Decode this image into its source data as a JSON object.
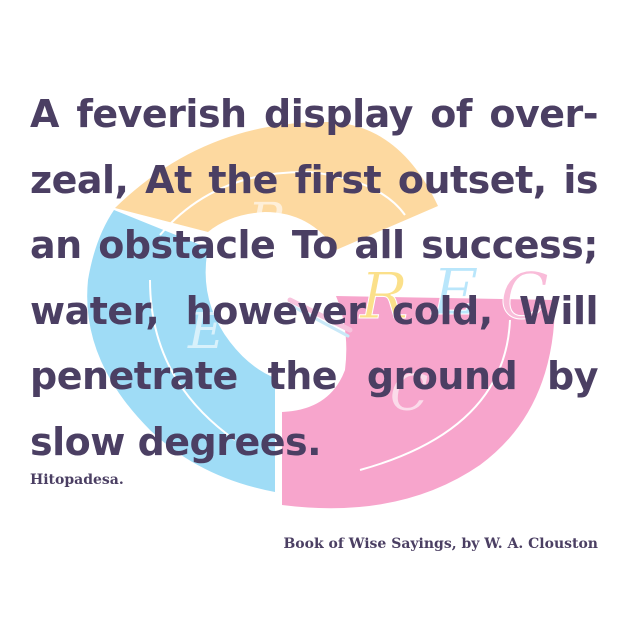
{
  "quote": {
    "text": "A feverish display of over-zeal, At the first outset, is an obstacle To all success; water, however cold, Will penetrate the ground by slow degrees.",
    "attribution": "Hitopadesa."
  },
  "source": "Book of Wise Sayings, by W. A. Clouston",
  "logo": {
    "letters": [
      "R",
      "E",
      "C"
    ],
    "colors": {
      "orange": "#fdd9a0",
      "blue": "#9fdcf6",
      "pink": "#f7a5cc",
      "text": "#4b3f63"
    }
  }
}
